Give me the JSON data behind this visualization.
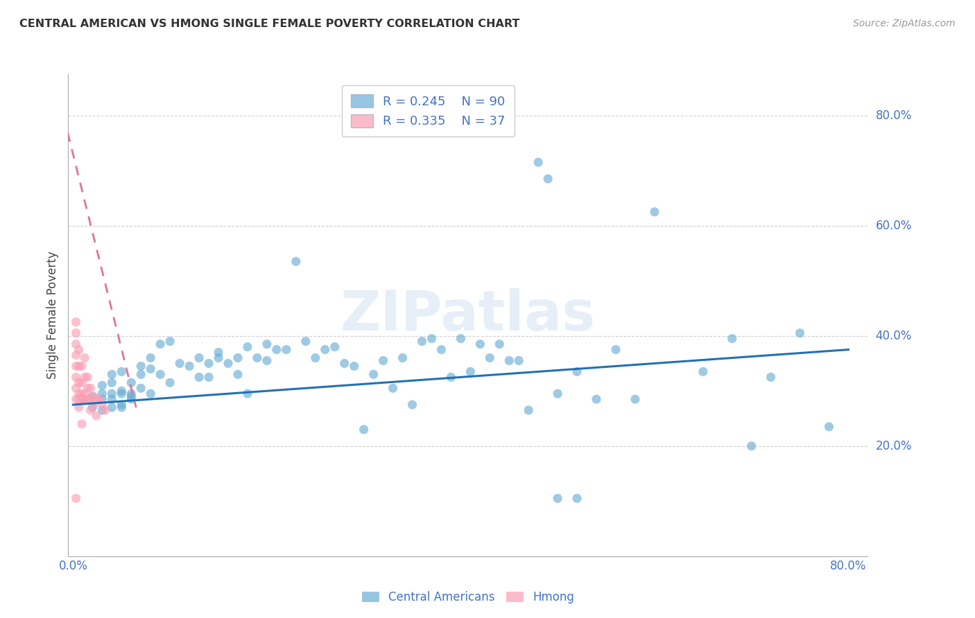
{
  "title": "CENTRAL AMERICAN VS HMONG SINGLE FEMALE POVERTY CORRELATION CHART",
  "source": "Source: ZipAtlas.com",
  "ylabel": "Single Female Poverty",
  "xmin": -0.005,
  "xmax": 0.82,
  "ymin": 0.0,
  "ymax": 0.875,
  "yticks": [
    0.2,
    0.4,
    0.6,
    0.8
  ],
  "ytick_labels": [
    "20.0%",
    "40.0%",
    "60.0%",
    "80.0%"
  ],
  "xticks": [
    0.0,
    0.1,
    0.2,
    0.3,
    0.4,
    0.5,
    0.6,
    0.7,
    0.8
  ],
  "blue_color": "#6baed6",
  "blue_line_color": "#2171b5",
  "pink_color": "#fb9fb5",
  "pink_line_color": "#e0729a",
  "legend_blue_R": "0.245",
  "legend_blue_N": "90",
  "legend_pink_R": "0.335",
  "legend_pink_N": "37",
  "watermark": "ZIPatlas",
  "blue_trend_x": [
    0.0,
    0.8
  ],
  "blue_trend_y": [
    0.275,
    0.375
  ],
  "pink_trend_x": [
    -0.01,
    0.065
  ],
  "pink_trend_y": [
    0.8,
    0.27
  ],
  "blue_scatter_x": [
    0.01,
    0.02,
    0.02,
    0.03,
    0.03,
    0.03,
    0.03,
    0.04,
    0.04,
    0.04,
    0.04,
    0.04,
    0.05,
    0.05,
    0.05,
    0.05,
    0.05,
    0.06,
    0.06,
    0.06,
    0.06,
    0.07,
    0.07,
    0.07,
    0.08,
    0.08,
    0.08,
    0.09,
    0.09,
    0.1,
    0.1,
    0.11,
    0.12,
    0.13,
    0.13,
    0.14,
    0.14,
    0.15,
    0.15,
    0.16,
    0.17,
    0.17,
    0.18,
    0.18,
    0.19,
    0.2,
    0.2,
    0.21,
    0.22,
    0.23,
    0.24,
    0.25,
    0.26,
    0.27,
    0.28,
    0.29,
    0.3,
    0.31,
    0.32,
    0.33,
    0.34,
    0.35,
    0.36,
    0.37,
    0.38,
    0.39,
    0.4,
    0.41,
    0.42,
    0.43,
    0.44,
    0.45,
    0.46,
    0.47,
    0.48,
    0.49,
    0.5,
    0.52,
    0.54,
    0.56,
    0.58,
    0.6,
    0.65,
    0.68,
    0.7,
    0.72,
    0.75,
    0.78,
    0.5,
    0.52
  ],
  "blue_scatter_y": [
    0.285,
    0.29,
    0.27,
    0.285,
    0.265,
    0.295,
    0.31,
    0.285,
    0.27,
    0.295,
    0.315,
    0.33,
    0.295,
    0.275,
    0.335,
    0.27,
    0.3,
    0.295,
    0.29,
    0.315,
    0.285,
    0.305,
    0.33,
    0.345,
    0.295,
    0.34,
    0.36,
    0.33,
    0.385,
    0.315,
    0.39,
    0.35,
    0.345,
    0.325,
    0.36,
    0.35,
    0.325,
    0.37,
    0.36,
    0.35,
    0.36,
    0.33,
    0.295,
    0.38,
    0.36,
    0.355,
    0.385,
    0.375,
    0.375,
    0.535,
    0.39,
    0.36,
    0.375,
    0.38,
    0.35,
    0.345,
    0.23,
    0.33,
    0.355,
    0.305,
    0.36,
    0.275,
    0.39,
    0.395,
    0.375,
    0.325,
    0.395,
    0.335,
    0.385,
    0.36,
    0.385,
    0.355,
    0.355,
    0.265,
    0.715,
    0.685,
    0.295,
    0.335,
    0.285,
    0.375,
    0.285,
    0.625,
    0.335,
    0.395,
    0.2,
    0.325,
    0.405,
    0.235,
    0.105,
    0.105
  ],
  "pink_scatter_x": [
    0.003,
    0.003,
    0.003,
    0.003,
    0.003,
    0.003,
    0.003,
    0.003,
    0.006,
    0.006,
    0.006,
    0.006,
    0.006,
    0.006,
    0.009,
    0.009,
    0.009,
    0.009,
    0.009,
    0.012,
    0.012,
    0.012,
    0.012,
    0.015,
    0.015,
    0.015,
    0.018,
    0.018,
    0.018,
    0.021,
    0.021,
    0.024,
    0.024,
    0.027,
    0.03,
    0.033,
    0.003
  ],
  "pink_scatter_y": [
    0.285,
    0.305,
    0.325,
    0.345,
    0.365,
    0.385,
    0.405,
    0.425,
    0.285,
    0.295,
    0.315,
    0.345,
    0.375,
    0.27,
    0.285,
    0.295,
    0.315,
    0.345,
    0.24,
    0.285,
    0.295,
    0.325,
    0.36,
    0.285,
    0.305,
    0.325,
    0.285,
    0.305,
    0.265,
    0.29,
    0.275,
    0.285,
    0.255,
    0.285,
    0.275,
    0.265,
    0.105
  ]
}
